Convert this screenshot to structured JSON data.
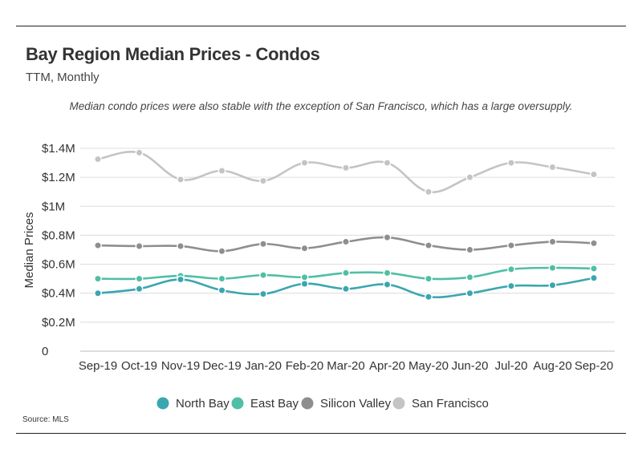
{
  "header": {
    "title": "Bay Region Median Prices - Condos",
    "subtitle": "TTM, Monthly",
    "note": "Median condo prices were also stable with the exception of San Francisco, which has a large oversupply."
  },
  "footer": {
    "source": "Source:  MLS"
  },
  "chart_data": {
    "type": "line",
    "title": "Bay Region Median Prices - Condos",
    "subtitle": "TTM, Monthly",
    "xlabel": "",
    "ylabel": "Median Prices",
    "categories": [
      "Sep-19",
      "Oct-19",
      "Nov-19",
      "Dec-19",
      "Jan-20",
      "Feb-20",
      "Mar-20",
      "Apr-20",
      "May-20",
      "Jun-20",
      "Jul-20",
      "Aug-20",
      "Sep-20"
    ],
    "ylim": [
      0,
      1400000
    ],
    "yticks": [
      0,
      200000,
      400000,
      600000,
      800000,
      1000000,
      1200000,
      1400000
    ],
    "ytick_labels": [
      "0",
      "$0.2M",
      "$0.4M",
      "$0.6M",
      "$0.8M",
      "$1M",
      "$1.2M",
      "$1.4M"
    ],
    "grid": "horizontal",
    "legend_position": "bottom",
    "series": [
      {
        "name": "North Bay",
        "color": "#3aa6b0",
        "values": [
          400000,
          430000,
          495000,
          420000,
          395000,
          465000,
          430000,
          460000,
          375000,
          400000,
          450000,
          455000,
          505000
        ]
      },
      {
        "name": "East Bay",
        "color": "#4fbfa5",
        "values": [
          500000,
          500000,
          520000,
          500000,
          525000,
          510000,
          540000,
          540000,
          500000,
          510000,
          565000,
          575000,
          570000
        ]
      },
      {
        "name": "Silicon Valley",
        "color": "#8e8e8e",
        "values": [
          730000,
          725000,
          725000,
          690000,
          740000,
          710000,
          755000,
          785000,
          730000,
          700000,
          730000,
          755000,
          745000
        ]
      },
      {
        "name": "San Francisco",
        "color": "#c4c4c4",
        "values": [
          1325000,
          1370000,
          1185000,
          1245000,
          1175000,
          1300000,
          1265000,
          1300000,
          1100000,
          1200000,
          1300000,
          1270000,
          1220000
        ]
      }
    ]
  }
}
